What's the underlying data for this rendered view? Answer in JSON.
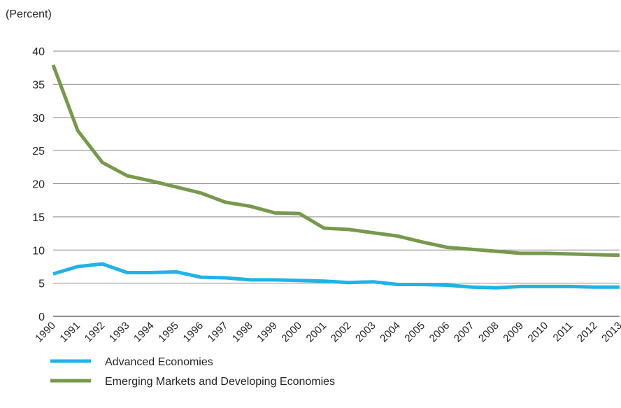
{
  "chart_data": {
    "type": "line",
    "title": "",
    "unit_label": "(Percent)",
    "xlabel": "",
    "ylabel": "",
    "categories": [
      "1990",
      "1991",
      "1992",
      "1993",
      "1994",
      "1995",
      "1996",
      "1997",
      "1998",
      "1999",
      "2000",
      "2001",
      "2002",
      "2003",
      "2004",
      "2005",
      "2006",
      "2007",
      "2008",
      "2009",
      "2010",
      "2011",
      "2012",
      "2013"
    ],
    "yticks": [
      0,
      5,
      10,
      15,
      20,
      25,
      30,
      35,
      40
    ],
    "ylim": [
      0,
      40
    ],
    "grid": true,
    "legend_position": "bottom-left",
    "series": [
      {
        "name": "Advanced Economies",
        "color": "#1fb3e8",
        "values": [
          6.4,
          7.5,
          7.9,
          6.6,
          6.6,
          6.7,
          5.9,
          5.8,
          5.5,
          5.5,
          5.4,
          5.3,
          5.1,
          5.2,
          4.8,
          4.8,
          4.7,
          4.4,
          4.3,
          4.5,
          4.5,
          4.5,
          4.4,
          4.4
        ]
      },
      {
        "name": "Emerging Markets and Developing Economies",
        "color": "#77994d",
        "values": [
          37.9,
          28.0,
          23.2,
          21.2,
          20.4,
          19.5,
          18.6,
          17.2,
          16.6,
          15.6,
          15.5,
          13.3,
          13.1,
          12.6,
          12.1,
          11.2,
          10.4,
          10.1,
          9.8,
          9.5,
          9.5,
          9.4,
          9.3,
          9.2
        ]
      }
    ]
  }
}
